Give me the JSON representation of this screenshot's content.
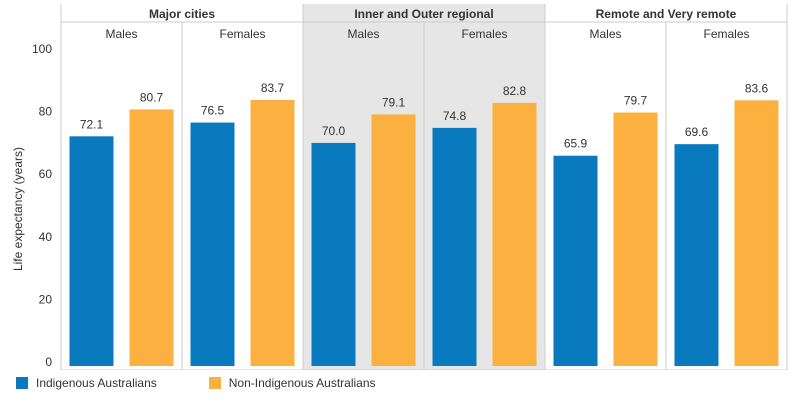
{
  "chart_data": {
    "type": "bar",
    "ylabel": "Life expectancy (years)",
    "ylim": [
      0,
      100
    ],
    "yticks": [
      0,
      20,
      40,
      60,
      80,
      100
    ],
    "grid": false,
    "legend_position": "bottom-left",
    "series": [
      {
        "name": "Indigenous Australians",
        "color": "#0a7abf"
      },
      {
        "name": "Non-Indigenous Australians",
        "color": "#fbb040"
      }
    ],
    "groups": [
      {
        "label": "Major cities",
        "shaded": false,
        "subgroups": [
          {
            "label": "Males",
            "values": [
              72.1,
              80.7
            ],
            "value_labels": [
              "72.1",
              "80.7"
            ]
          },
          {
            "label": "Females",
            "values": [
              76.5,
              83.7
            ],
            "value_labels": [
              "76.5",
              "83.7"
            ]
          }
        ]
      },
      {
        "label": "Inner and Outer regional",
        "shaded": true,
        "subgroups": [
          {
            "label": "Males",
            "values": [
              70.0,
              79.1
            ],
            "value_labels": [
              "70.0",
              "79.1"
            ]
          },
          {
            "label": "Females",
            "values": [
              74.8,
              82.8
            ],
            "value_labels": [
              "74.8",
              "82.8"
            ]
          }
        ]
      },
      {
        "label": "Remote and Very remote",
        "shaded": false,
        "subgroups": [
          {
            "label": "Males",
            "values": [
              65.9,
              79.7
            ],
            "value_labels": [
              "65.9",
              "79.7"
            ]
          },
          {
            "label": "Females",
            "values": [
              69.6,
              83.6
            ],
            "value_labels": [
              "69.6",
              "83.6"
            ]
          }
        ]
      }
    ]
  },
  "colors": {
    "indigenous": "#0a7abf",
    "non_indigenous": "#fbb040",
    "shaded_panel": "#e6e6e6",
    "divider": "#cccccc",
    "text": "#333333"
  }
}
